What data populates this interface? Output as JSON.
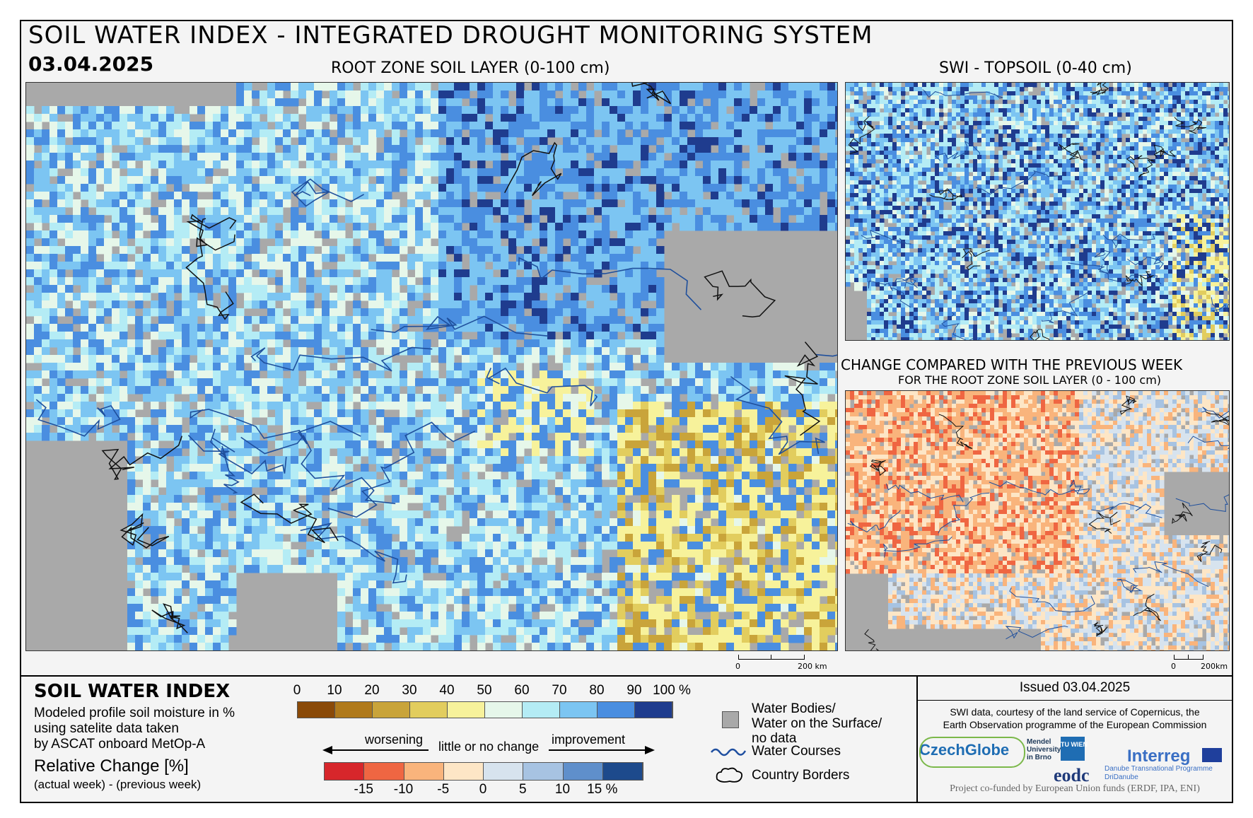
{
  "header": {
    "title": "SOIL WATER INDEX - INTEGRATED DROUGHT MONITORING SYSTEM",
    "date": "03.04.2025"
  },
  "maps": {
    "main": {
      "title": "ROOT ZONE SOIL LAYER (0-100 cm)",
      "scale": "200 km",
      "scale_zero": "0"
    },
    "topsoil": {
      "title": "SWI - TOPSOIL (0-40 cm)"
    },
    "change": {
      "title": "CHANGE COMPARED WITH THE PREVIOUS WEEK",
      "subtitle": "FOR THE ROOT ZONE SOIL LAYER (0 - 100 cm)",
      "scale": "200km",
      "scale_zero": "0"
    }
  },
  "legend": {
    "title": "SOIL WATER INDEX",
    "description": [
      "Modeled profile soil moisture in %",
      "using satelite data taken",
      "by ASCAT onboard MetOp-A"
    ],
    "relative_title": "Relative Change [%]",
    "relative_sub": "(actual week) - (previous week)",
    "swi_ticks": [
      "0",
      "10",
      "20",
      "30",
      "40",
      "50",
      "60",
      "70",
      "80",
      "90",
      "100 %"
    ],
    "swi_colors": [
      "#8a4a08",
      "#b07a1b",
      "#c9a43a",
      "#e2cd5e",
      "#f7f29b",
      "#e6f7ea",
      "#b4ecf5",
      "#7cc5f2",
      "#4a8ee0",
      "#1f3c8e"
    ],
    "change_ticks": [
      "-15",
      "-10",
      "-5",
      "0",
      "5",
      "10",
      "15 %"
    ],
    "change_colors": [
      "#d7262b",
      "#ef6642",
      "#f9b47c",
      "#fde6c6",
      "#d7e3ee",
      "#a7c3e2",
      "#5f8fcb",
      "#1d4a8c"
    ],
    "worsening": "worsening",
    "little": "little or no change",
    "improvement": "improvement",
    "water_bodies": [
      "Water Bodies/",
      "Water on the Surface/",
      "no data"
    ],
    "water_courses": "Water Courses",
    "country_borders": "Country Borders"
  },
  "info": {
    "issued": "Issued 03.04.2025",
    "credit": [
      "SWI data, courtesy of the land service of Copernicus, the",
      "Earth Observation programme of the European Commission"
    ],
    "funded": "Project co-funded by European Union funds (ERDF, IPA, ENI)",
    "logos": {
      "czechglobe": "CzechGlobe",
      "mendel": [
        "Mendel",
        "University",
        "in Brno"
      ],
      "tuwien": "TU WIEN",
      "eodc": "eodc",
      "interreg": "Interreg",
      "danube": [
        "Danube Transnational Programme",
        "DriDanube"
      ]
    }
  }
}
